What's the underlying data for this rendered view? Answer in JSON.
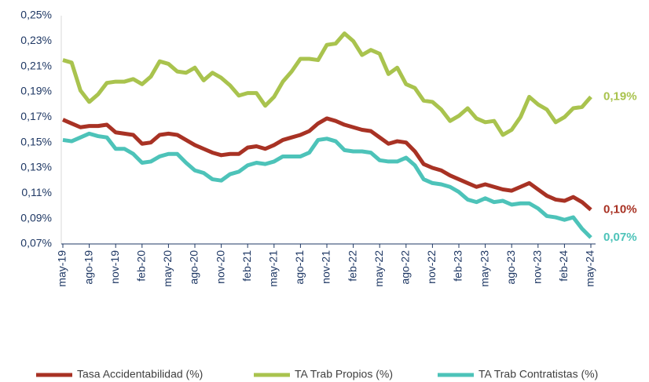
{
  "chart_data": {
    "type": "line",
    "categories": [
      "may-19",
      null,
      null,
      "ago-19",
      null,
      null,
      "nov-19",
      null,
      null,
      "feb-20",
      null,
      null,
      "may-20",
      null,
      null,
      "ago-20",
      null,
      null,
      "nov-20",
      null,
      null,
      "feb-21",
      null,
      null,
      "may-21",
      null,
      null,
      "ago-21",
      null,
      null,
      "nov-21",
      null,
      null,
      "feb-22",
      null,
      null,
      "may-22",
      null,
      null,
      "ago-22",
      null,
      null,
      "nov-22",
      null,
      null,
      "feb-23",
      null,
      null,
      "may-23",
      null,
      null,
      "ago-23",
      null,
      null,
      "nov-23",
      null,
      null,
      "feb-24",
      null,
      null,
      "may-24"
    ],
    "series": [
      {
        "name": "Tasa Accidentabilidad (%)",
        "color": "#a83224",
        "values": [
          0.168,
          0.165,
          0.162,
          0.163,
          0.163,
          0.164,
          0.158,
          0.157,
          0.156,
          0.149,
          0.15,
          0.156,
          0.157,
          0.156,
          0.152,
          0.148,
          0.145,
          0.142,
          0.14,
          0.141,
          0.141,
          0.146,
          0.147,
          0.145,
          0.148,
          0.152,
          0.154,
          0.156,
          0.159,
          0.165,
          0.169,
          0.167,
          0.164,
          0.162,
          0.16,
          0.159,
          0.154,
          0.149,
          0.151,
          0.15,
          0.143,
          0.133,
          0.13,
          0.128,
          0.124,
          0.121,
          0.118,
          0.115,
          0.117,
          0.115,
          0.113,
          0.112,
          0.115,
          0.118,
          0.113,
          0.108,
          0.105,
          0.104,
          0.107,
          0.103,
          0.097
        ],
        "value_labels": [
          null,
          null,
          null,
          null,
          null,
          null,
          null,
          null,
          null,
          null,
          null,
          null,
          null,
          null,
          null,
          null,
          null,
          null,
          null,
          null,
          null,
          null,
          null,
          null,
          null,
          null,
          null,
          null,
          null,
          null,
          null,
          null,
          null,
          null,
          null,
          null,
          null,
          null,
          null,
          null,
          null,
          null,
          null,
          null,
          null,
          null,
          null,
          null,
          null,
          null,
          null,
          null,
          null,
          null,
          null,
          null,
          null,
          null,
          null,
          null,
          "0,10%"
        ]
      },
      {
        "name": "TA Trab Propios (%)",
        "color": "#a9c34e",
        "values": [
          0.215,
          0.213,
          0.191,
          0.182,
          0.188,
          0.197,
          0.198,
          0.198,
          0.2,
          0.196,
          0.202,
          0.214,
          0.212,
          0.206,
          0.205,
          0.209,
          0.199,
          0.205,
          0.201,
          0.195,
          0.187,
          0.189,
          0.189,
          0.179,
          0.186,
          0.198,
          0.206,
          0.216,
          0.216,
          0.215,
          0.227,
          0.228,
          0.236,
          0.23,
          0.219,
          0.223,
          0.22,
          0.204,
          0.209,
          0.196,
          0.193,
          0.183,
          0.182,
          0.176,
          0.167,
          0.171,
          0.177,
          0.169,
          0.166,
          0.167,
          0.156,
          0.16,
          0.17,
          0.186,
          0.18,
          0.176,
          0.166,
          0.17,
          0.177,
          0.178,
          0.186
        ],
        "value_labels": [
          null,
          null,
          null,
          null,
          null,
          null,
          null,
          null,
          null,
          null,
          null,
          null,
          null,
          null,
          null,
          null,
          null,
          null,
          null,
          null,
          null,
          null,
          null,
          null,
          null,
          null,
          null,
          null,
          null,
          null,
          null,
          null,
          null,
          null,
          null,
          null,
          null,
          null,
          null,
          null,
          null,
          null,
          null,
          null,
          null,
          null,
          null,
          null,
          null,
          null,
          null,
          null,
          null,
          null,
          null,
          null,
          null,
          null,
          null,
          null,
          "0,19%"
        ]
      },
      {
        "name": "TA Trab Contratistas (%)",
        "color": "#4dc3b9",
        "values": [
          0.152,
          0.151,
          0.154,
          0.157,
          0.155,
          0.154,
          0.145,
          0.145,
          0.141,
          0.134,
          0.135,
          0.139,
          0.141,
          0.141,
          0.134,
          0.128,
          0.126,
          0.121,
          0.12,
          0.125,
          0.127,
          0.132,
          0.134,
          0.133,
          0.135,
          0.139,
          0.139,
          0.139,
          0.142,
          0.152,
          0.153,
          0.151,
          0.144,
          0.143,
          0.143,
          0.142,
          0.136,
          0.135,
          0.135,
          0.138,
          0.132,
          0.121,
          0.118,
          0.117,
          0.115,
          0.111,
          0.105,
          0.103,
          0.106,
          0.103,
          0.104,
          0.101,
          0.102,
          0.102,
          0.098,
          0.092,
          0.091,
          0.089,
          0.091,
          0.082,
          0.075
        ],
        "value_labels": [
          null,
          null,
          null,
          null,
          null,
          null,
          null,
          null,
          null,
          null,
          null,
          null,
          null,
          null,
          null,
          null,
          null,
          null,
          null,
          null,
          null,
          null,
          null,
          null,
          null,
          null,
          null,
          null,
          null,
          null,
          null,
          null,
          null,
          null,
          null,
          null,
          null,
          null,
          null,
          null,
          null,
          null,
          null,
          null,
          null,
          null,
          null,
          null,
          null,
          null,
          null,
          null,
          null,
          null,
          null,
          null,
          null,
          null,
          null,
          null,
          "0,07%"
        ]
      }
    ],
    "ylim": [
      0.07,
      0.25
    ],
    "yticks": [
      {
        "value": 0.07,
        "label": "0,07%"
      },
      {
        "value": 0.09,
        "label": "0,09%"
      },
      {
        "value": 0.11,
        "label": "0,11%"
      },
      {
        "value": 0.13,
        "label": "0,13%"
      },
      {
        "value": 0.15,
        "label": "0,15%"
      },
      {
        "value": 0.17,
        "label": "0,17%"
      },
      {
        "value": 0.19,
        "label": "0,19%"
      },
      {
        "value": 0.21,
        "label": "0,21%"
      },
      {
        "value": 0.23,
        "label": "0,23%"
      },
      {
        "value": 0.25,
        "label": "0,25%"
      }
    ],
    "grid": false,
    "legend": "bottom"
  }
}
